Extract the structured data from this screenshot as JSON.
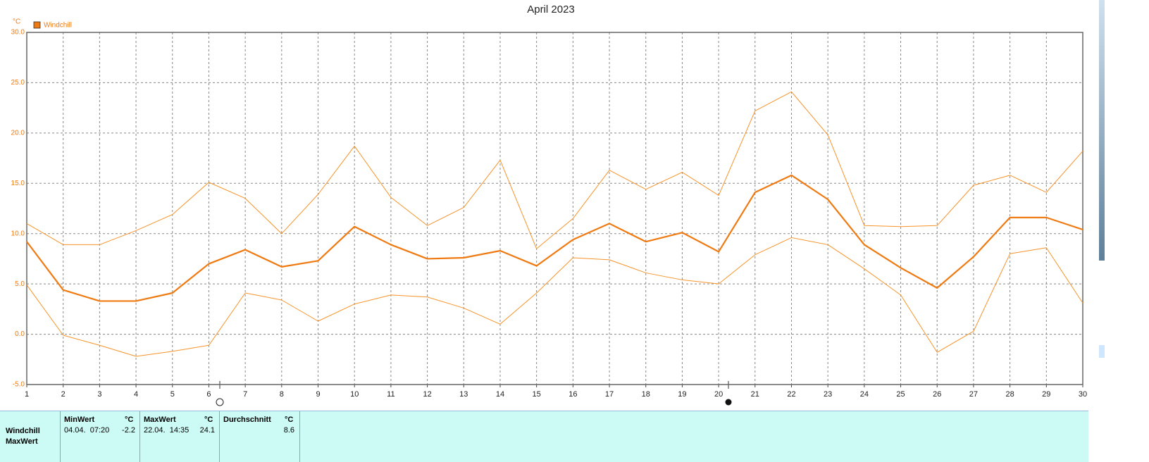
{
  "chart_data": {
    "type": "line",
    "title": "April 2023",
    "y_axis_label": "°C",
    "x": [
      1,
      2,
      3,
      4,
      5,
      6,
      7,
      8,
      9,
      10,
      11,
      12,
      13,
      14,
      15,
      16,
      17,
      18,
      19,
      20,
      21,
      22,
      23,
      24,
      25,
      26,
      27,
      28,
      29,
      30
    ],
    "xlim": [
      1,
      30
    ],
    "xticks": [
      1,
      2,
      3,
      4,
      5,
      6,
      7,
      8,
      9,
      10,
      11,
      12,
      13,
      14,
      15,
      16,
      17,
      18,
      19,
      20,
      21,
      22,
      23,
      24,
      25,
      26,
      27,
      28,
      29,
      30
    ],
    "ylim": [
      -5,
      30
    ],
    "yticks": [
      {
        "value": -5,
        "label": "-5.0"
      },
      {
        "value": 0,
        "label": "0.0"
      },
      {
        "value": 5,
        "label": "5.0"
      },
      {
        "value": 10,
        "label": "10.0"
      },
      {
        "value": 15,
        "label": "15.0"
      },
      {
        "value": 20,
        "label": "20.0"
      },
      {
        "value": 25,
        "label": "25.0"
      },
      {
        "value": 30,
        "label": "30.0"
      }
    ],
    "grid": true,
    "legend": "top-left",
    "series": [
      {
        "name": "Windchill",
        "color": "#f07a12",
        "width": 2.2,
        "values": [
          9.2,
          4.4,
          3.3,
          3.3,
          4.1,
          7.0,
          8.4,
          6.7,
          7.3,
          10.7,
          8.9,
          7.5,
          7.6,
          8.3,
          6.8,
          9.4,
          11.0,
          9.2,
          10.1,
          8.2,
          14.1,
          15.8,
          13.4,
          8.9,
          6.6,
          4.6,
          7.7,
          11.6,
          11.6,
          10.4
        ]
      },
      {
        "color": "#f7932a",
        "width": 1,
        "values": [
          11.0,
          8.9,
          8.9,
          10.3,
          11.9,
          15.1,
          13.5,
          10.0,
          13.9,
          18.7,
          13.6,
          10.8,
          12.6,
          17.3,
          8.5,
          11.5,
          16.3,
          14.4,
          16.1,
          13.8,
          22.2,
          24.1,
          19.8,
          10.8,
          10.7,
          10.8,
          14.8,
          15.8,
          14.1,
          18.2
        ]
      },
      {
        "color": "#f7932a",
        "width": 1,
        "values": [
          4.9,
          -0.1,
          -1.1,
          -2.2,
          -1.7,
          -1.1,
          4.1,
          3.4,
          1.3,
          3.0,
          3.9,
          3.7,
          2.6,
          1.0,
          4.1,
          7.6,
          7.4,
          6.1,
          5.4,
          5.0,
          7.9,
          9.6,
          8.9,
          6.5,
          3.9,
          -1.8,
          0.3,
          8.0,
          8.6,
          3.1
        ]
      }
    ]
  },
  "summary_table": {
    "row_labels": [
      "Windchill",
      "MaxWert"
    ],
    "headers": [
      "MinWert",
      "°C",
      "MaxWert",
      "°C",
      "Durchschnitt",
      "°C"
    ],
    "row": {
      "min_time": "04.04.  07:20",
      "min": -2.2,
      "max_time": "22.04.  14:35",
      "max": 24.1,
      "avg": 8.6
    }
  }
}
